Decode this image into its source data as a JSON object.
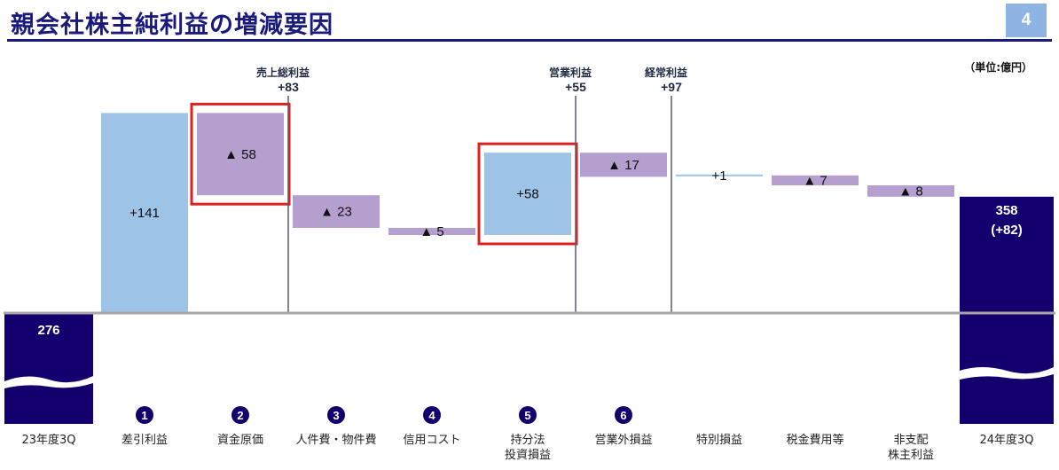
{
  "header": {
    "title": "親会社株主純利益の増減要因",
    "page_number": "4",
    "unit": "（単位:億円）"
  },
  "colors": {
    "increase": "#9dc3e6",
    "decrease": "#b49fcf",
    "total": "#13006e",
    "highlight": "#e02020",
    "milestone_line": "#555b6e"
  },
  "chart_data": {
    "type": "bar",
    "subtype": "waterfall",
    "title": "親会社株主純利益の増減要因",
    "unit": "（単位:億円）",
    "start": {
      "category": "23年度3Q",
      "value": 276,
      "label": "276"
    },
    "end": {
      "category": "24年度3Q",
      "value": 358,
      "label": "358",
      "change_label": "(+82)"
    },
    "steps": [
      {
        "category": "差引利益",
        "lines": [
          "差引利益"
        ],
        "value": 141,
        "label": "+141",
        "badge": "1",
        "highlight": false
      },
      {
        "category": "資金原価",
        "lines": [
          "資金原価"
        ],
        "value": -58,
        "label": "▲ 58",
        "badge": "2",
        "highlight": true
      },
      {
        "category": "人件費・物件費",
        "lines": [
          "人件費・物件費"
        ],
        "value": -23,
        "label": "▲ 23",
        "badge": "3",
        "highlight": false
      },
      {
        "category": "信用コスト",
        "lines": [
          "信用コスト"
        ],
        "value": -5,
        "label": "▲ 5",
        "badge": "4",
        "highlight": false
      },
      {
        "category": "持分法投資損益",
        "lines": [
          "持分法",
          "投資損益"
        ],
        "value": 58,
        "label": "+58",
        "badge": "5",
        "highlight": true
      },
      {
        "category": "営業外損益",
        "lines": [
          "営業外損益"
        ],
        "value": -17,
        "label": "▲ 17",
        "badge": "6",
        "highlight": false
      },
      {
        "category": "特別損益",
        "lines": [
          "特別損益"
        ],
        "value": 1,
        "label": "+1",
        "badge": "",
        "highlight": false
      },
      {
        "category": "税金費用等",
        "lines": [
          "税金費用等"
        ],
        "value": -7,
        "label": "▲ 7",
        "badge": "",
        "highlight": false
      },
      {
        "category": "非支配株主利益",
        "lines": [
          "非支配",
          "株主利益"
        ],
        "value": -8,
        "label": "▲ 8",
        "badge": "",
        "highlight": false
      }
    ],
    "milestones": [
      {
        "name": "売上総利益",
        "value_label": "+83",
        "after_step": 2
      },
      {
        "name": "営業利益",
        "value_label": "+55",
        "after_step": 5
      },
      {
        "name": "経常利益",
        "value_label": "+97",
        "after_step": 6
      }
    ],
    "axis_break": true
  }
}
